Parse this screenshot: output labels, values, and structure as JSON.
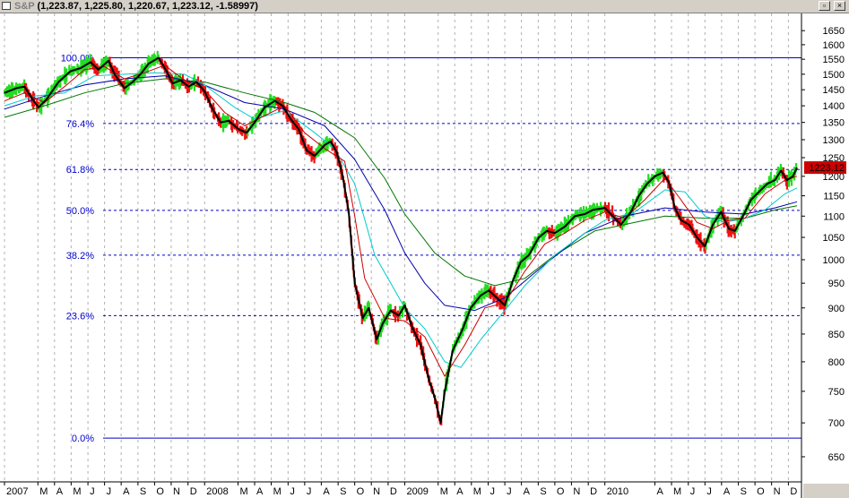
{
  "window": {
    "symbol": "S&P",
    "quote": "(1,223.87, 1,225.80, 1,220.67, 1,223.12, -1.58997)",
    "restore_glyph": "▫",
    "close_glyph": "×"
  },
  "chart_data": {
    "type": "line",
    "title": "",
    "xlabel": "",
    "ylabel": "",
    "ylim": [
      625,
      1680
    ],
    "y_scale": "log",
    "grid": true,
    "yticks": [
      650,
      700,
      750,
      800,
      850,
      900,
      950,
      1000,
      1050,
      1100,
      1150,
      1200,
      1250,
      1300,
      1350,
      1400,
      1450,
      1500,
      1550,
      1600,
      1650
    ],
    "month_labels": [
      {
        "t": 2007.0,
        "label": "2007"
      },
      {
        "t": 2007.167,
        "label": "M"
      },
      {
        "t": 2007.25,
        "label": "A"
      },
      {
        "t": 2007.333,
        "label": "M"
      },
      {
        "t": 2007.417,
        "label": "J"
      },
      {
        "t": 2007.5,
        "label": "J"
      },
      {
        "t": 2007.583,
        "label": "A"
      },
      {
        "t": 2007.667,
        "label": "S"
      },
      {
        "t": 2007.75,
        "label": "O"
      },
      {
        "t": 2007.833,
        "label": "N"
      },
      {
        "t": 2007.917,
        "label": "D"
      },
      {
        "t": 2008.0,
        "label": "2008"
      },
      {
        "t": 2008.167,
        "label": "M"
      },
      {
        "t": 2008.25,
        "label": "A"
      },
      {
        "t": 2008.333,
        "label": "M"
      },
      {
        "t": 2008.417,
        "label": "J"
      },
      {
        "t": 2008.5,
        "label": "J"
      },
      {
        "t": 2008.583,
        "label": "A"
      },
      {
        "t": 2008.667,
        "label": "S"
      },
      {
        "t": 2008.75,
        "label": "O"
      },
      {
        "t": 2008.833,
        "label": "N"
      },
      {
        "t": 2008.917,
        "label": "D"
      },
      {
        "t": 2009.0,
        "label": "2009"
      },
      {
        "t": 2009.167,
        "label": "M"
      },
      {
        "t": 2009.25,
        "label": "A"
      },
      {
        "t": 2009.333,
        "label": "M"
      },
      {
        "t": 2009.417,
        "label": "J"
      },
      {
        "t": 2009.5,
        "label": "J"
      },
      {
        "t": 2009.583,
        "label": "A"
      },
      {
        "t": 2009.667,
        "label": "S"
      },
      {
        "t": 2009.75,
        "label": "O"
      },
      {
        "t": 2009.833,
        "label": "N"
      },
      {
        "t": 2009.917,
        "label": "D"
      },
      {
        "t": 2010.0,
        "label": "2010"
      },
      {
        "t": 2010.25,
        "label": "A"
      },
      {
        "t": 2010.333,
        "label": "M"
      },
      {
        "t": 2010.417,
        "label": "J"
      },
      {
        "t": 2010.5,
        "label": "J"
      },
      {
        "t": 2010.583,
        "label": "A"
      },
      {
        "t": 2010.667,
        "label": "S"
      },
      {
        "t": 2010.75,
        "label": "O"
      },
      {
        "t": 2010.833,
        "label": "N"
      },
      {
        "t": 2010.917,
        "label": "D"
      }
    ],
    "x_range": [
      2007.0,
      2010.96
    ],
    "fib_levels": [
      {
        "label": "100.0%",
        "value": 1555,
        "style": "solid"
      },
      {
        "label": "76.4%",
        "value": 1347,
        "style": "dashed"
      },
      {
        "label": "61.8%",
        "value": 1218,
        "style": "dashed"
      },
      {
        "label": "50.0%",
        "value": 1114,
        "style": "dashed"
      },
      {
        "label": "38.2%",
        "value": 1010,
        "style": "dashed"
      },
      {
        "label": "23.6%",
        "value": 885,
        "style": "dashed"
      },
      {
        "label": "0.0%",
        "value": 677,
        "style": "solid"
      }
    ],
    "last_price_label": "1223.12",
    "last_price": 1223.12,
    "colors": {
      "up": "#22dd22",
      "down": "#ee1111",
      "price_line": "#000000",
      "ma_short": "#cc0000",
      "ma_medium": "#00cccc",
      "ma_long_blue": "#0000aa",
      "ma_long_green": "#007700",
      "fib": "#0000cc",
      "grid": "#b0b0b0"
    },
    "series": [
      {
        "key": "price",
        "points": [
          [
            2007.0,
            1440
          ],
          [
            2007.06,
            1455
          ],
          [
            2007.1,
            1460
          ],
          [
            2007.14,
            1420
          ],
          [
            2007.17,
            1395
          ],
          [
            2007.21,
            1420
          ],
          [
            2007.27,
            1475
          ],
          [
            2007.33,
            1510
          ],
          [
            2007.38,
            1520
          ],
          [
            2007.43,
            1540
          ],
          [
            2007.47,
            1515
          ],
          [
            2007.52,
            1545
          ],
          [
            2007.55,
            1500
          ],
          [
            2007.6,
            1455
          ],
          [
            2007.64,
            1475
          ],
          [
            2007.68,
            1500
          ],
          [
            2007.72,
            1535
          ],
          [
            2007.77,
            1555
          ],
          [
            2007.81,
            1510
          ],
          [
            2007.84,
            1470
          ],
          [
            2007.88,
            1480
          ],
          [
            2007.92,
            1460
          ],
          [
            2007.96,
            1475
          ],
          [
            2008.0,
            1445
          ],
          [
            2008.04,
            1390
          ],
          [
            2008.08,
            1350
          ],
          [
            2008.12,
            1355
          ],
          [
            2008.17,
            1330
          ],
          [
            2008.21,
            1320
          ],
          [
            2008.25,
            1350
          ],
          [
            2008.3,
            1395
          ],
          [
            2008.35,
            1415
          ],
          [
            2008.39,
            1400
          ],
          [
            2008.43,
            1360
          ],
          [
            2008.47,
            1330
          ],
          [
            2008.51,
            1270
          ],
          [
            2008.55,
            1255
          ],
          [
            2008.6,
            1285
          ],
          [
            2008.63,
            1295
          ],
          [
            2008.66,
            1265
          ],
          [
            2008.69,
            1200
          ],
          [
            2008.72,
            1110
          ],
          [
            2008.75,
            950
          ],
          [
            2008.79,
            880
          ],
          [
            2008.82,
            900
          ],
          [
            2008.86,
            840
          ],
          [
            2008.89,
            870
          ],
          [
            2008.93,
            895
          ],
          [
            2008.97,
            885
          ],
          [
            2009.0,
            905
          ],
          [
            2009.04,
            860
          ],
          [
            2009.08,
            830
          ],
          [
            2009.12,
            770
          ],
          [
            2009.15,
            740
          ],
          [
            2009.18,
            700
          ],
          [
            2009.2,
            750
          ],
          [
            2009.24,
            820
          ],
          [
            2009.29,
            860
          ],
          [
            2009.33,
            900
          ],
          [
            2009.38,
            925
          ],
          [
            2009.42,
            935
          ],
          [
            2009.46,
            920
          ],
          [
            2009.5,
            905
          ],
          [
            2009.54,
            955
          ],
          [
            2009.58,
            995
          ],
          [
            2009.62,
            1010
          ],
          [
            2009.67,
            1050
          ],
          [
            2009.71,
            1065
          ],
          [
            2009.75,
            1060
          ],
          [
            2009.8,
            1075
          ],
          [
            2009.85,
            1100
          ],
          [
            2009.9,
            1105
          ],
          [
            2009.94,
            1115
          ],
          [
            2010.0,
            1120
          ],
          [
            2010.04,
            1100
          ],
          [
            2010.08,
            1080
          ],
          [
            2010.13,
            1110
          ],
          [
            2010.17,
            1150
          ],
          [
            2010.21,
            1180
          ],
          [
            2010.25,
            1200
          ],
          [
            2010.29,
            1210
          ],
          [
            2010.32,
            1185
          ],
          [
            2010.35,
            1120
          ],
          [
            2010.38,
            1090
          ],
          [
            2010.42,
            1080
          ],
          [
            2010.46,
            1050
          ],
          [
            2010.5,
            1030
          ],
          [
            2010.54,
            1080
          ],
          [
            2010.58,
            1110
          ],
          [
            2010.62,
            1070
          ],
          [
            2010.65,
            1065
          ],
          [
            2010.69,
            1100
          ],
          [
            2010.73,
            1140
          ],
          [
            2010.77,
            1160
          ],
          [
            2010.81,
            1180
          ],
          [
            2010.85,
            1190
          ],
          [
            2010.88,
            1215
          ],
          [
            2010.91,
            1190
          ],
          [
            2010.94,
            1200
          ],
          [
            2010.96,
            1223
          ]
        ]
      },
      {
        "key": "ma_short",
        "points": [
          [
            2007.0,
            1415
          ],
          [
            2007.1,
            1440
          ],
          [
            2007.2,
            1410
          ],
          [
            2007.3,
            1460
          ],
          [
            2007.4,
            1515
          ],
          [
            2007.5,
            1525
          ],
          [
            2007.6,
            1485
          ],
          [
            2007.7,
            1505
          ],
          [
            2007.8,
            1530
          ],
          [
            2007.9,
            1480
          ],
          [
            2008.0,
            1450
          ],
          [
            2008.1,
            1380
          ],
          [
            2008.2,
            1340
          ],
          [
            2008.3,
            1370
          ],
          [
            2008.4,
            1400
          ],
          [
            2008.5,
            1320
          ],
          [
            2008.6,
            1275
          ],
          [
            2008.7,
            1240
          ],
          [
            2008.75,
            1100
          ],
          [
            2008.8,
            960
          ],
          [
            2008.9,
            880
          ],
          [
            2009.0,
            875
          ],
          [
            2009.1,
            845
          ],
          [
            2009.2,
            775
          ],
          [
            2009.3,
            830
          ],
          [
            2009.4,
            900
          ],
          [
            2009.5,
            910
          ],
          [
            2009.6,
            975
          ],
          [
            2009.7,
            1035
          ],
          [
            2009.8,
            1060
          ],
          [
            2009.9,
            1090
          ],
          [
            2010.0,
            1110
          ],
          [
            2010.1,
            1095
          ],
          [
            2010.2,
            1140
          ],
          [
            2010.3,
            1195
          ],
          [
            2010.38,
            1140
          ],
          [
            2010.46,
            1085
          ],
          [
            2010.54,
            1070
          ],
          [
            2010.62,
            1090
          ],
          [
            2010.7,
            1095
          ],
          [
            2010.8,
            1155
          ],
          [
            2010.9,
            1190
          ],
          [
            2010.96,
            1200
          ]
        ]
      },
      {
        "key": "ma_medium",
        "points": [
          [
            2007.0,
            1400
          ],
          [
            2007.15,
            1430
          ],
          [
            2007.3,
            1440
          ],
          [
            2007.45,
            1495
          ],
          [
            2007.6,
            1500
          ],
          [
            2007.75,
            1505
          ],
          [
            2007.9,
            1500
          ],
          [
            2008.0,
            1465
          ],
          [
            2008.15,
            1395
          ],
          [
            2008.25,
            1360
          ],
          [
            2008.4,
            1385
          ],
          [
            2008.55,
            1320
          ],
          [
            2008.65,
            1275
          ],
          [
            2008.75,
            1180
          ],
          [
            2008.85,
            1010
          ],
          [
            2009.0,
            900
          ],
          [
            2009.1,
            860
          ],
          [
            2009.2,
            800
          ],
          [
            2009.28,
            790
          ],
          [
            2009.38,
            840
          ],
          [
            2009.5,
            895
          ],
          [
            2009.6,
            945
          ],
          [
            2009.75,
            1010
          ],
          [
            2009.9,
            1060
          ],
          [
            2010.0,
            1090
          ],
          [
            2010.15,
            1110
          ],
          [
            2010.3,
            1165
          ],
          [
            2010.4,
            1160
          ],
          [
            2010.5,
            1100
          ],
          [
            2010.6,
            1085
          ],
          [
            2010.7,
            1095
          ],
          [
            2010.8,
            1115
          ],
          [
            2010.9,
            1155
          ],
          [
            2010.96,
            1170
          ]
        ]
      },
      {
        "key": "ma_long_blue",
        "points": [
          [
            2007.0,
            1390
          ],
          [
            2007.2,
            1430
          ],
          [
            2007.4,
            1465
          ],
          [
            2007.6,
            1485
          ],
          [
            2007.8,
            1495
          ],
          [
            2008.0,
            1465
          ],
          [
            2008.2,
            1410
          ],
          [
            2008.4,
            1390
          ],
          [
            2008.6,
            1340
          ],
          [
            2008.75,
            1245
          ],
          [
            2008.9,
            1115
          ],
          [
            2009.0,
            1015
          ],
          [
            2009.1,
            950
          ],
          [
            2009.2,
            905
          ],
          [
            2009.35,
            895
          ],
          [
            2009.5,
            920
          ],
          [
            2009.7,
            990
          ],
          [
            2009.9,
            1060
          ],
          [
            2010.1,
            1100
          ],
          [
            2010.3,
            1120
          ],
          [
            2010.5,
            1110
          ],
          [
            2010.7,
            1105
          ],
          [
            2010.85,
            1120
          ],
          [
            2010.96,
            1135
          ]
        ]
      },
      {
        "key": "ma_long_green",
        "points": [
          [
            2007.0,
            1365
          ],
          [
            2007.2,
            1400
          ],
          [
            2007.4,
            1440
          ],
          [
            2007.6,
            1470
          ],
          [
            2007.8,
            1485
          ],
          [
            2008.0,
            1475
          ],
          [
            2008.2,
            1440
          ],
          [
            2008.4,
            1410
          ],
          [
            2008.55,
            1380
          ],
          [
            2008.75,
            1305
          ],
          [
            2008.9,
            1195
          ],
          [
            2009.0,
            1105
          ],
          [
            2009.15,
            1015
          ],
          [
            2009.3,
            965
          ],
          [
            2009.45,
            945
          ],
          [
            2009.6,
            960
          ],
          [
            2009.75,
            1010
          ],
          [
            2009.95,
            1065
          ],
          [
            2010.15,
            1085
          ],
          [
            2010.3,
            1100
          ],
          [
            2010.5,
            1095
          ],
          [
            2010.7,
            1095
          ],
          [
            2010.85,
            1115
          ],
          [
            2010.96,
            1125
          ]
        ]
      }
    ]
  }
}
